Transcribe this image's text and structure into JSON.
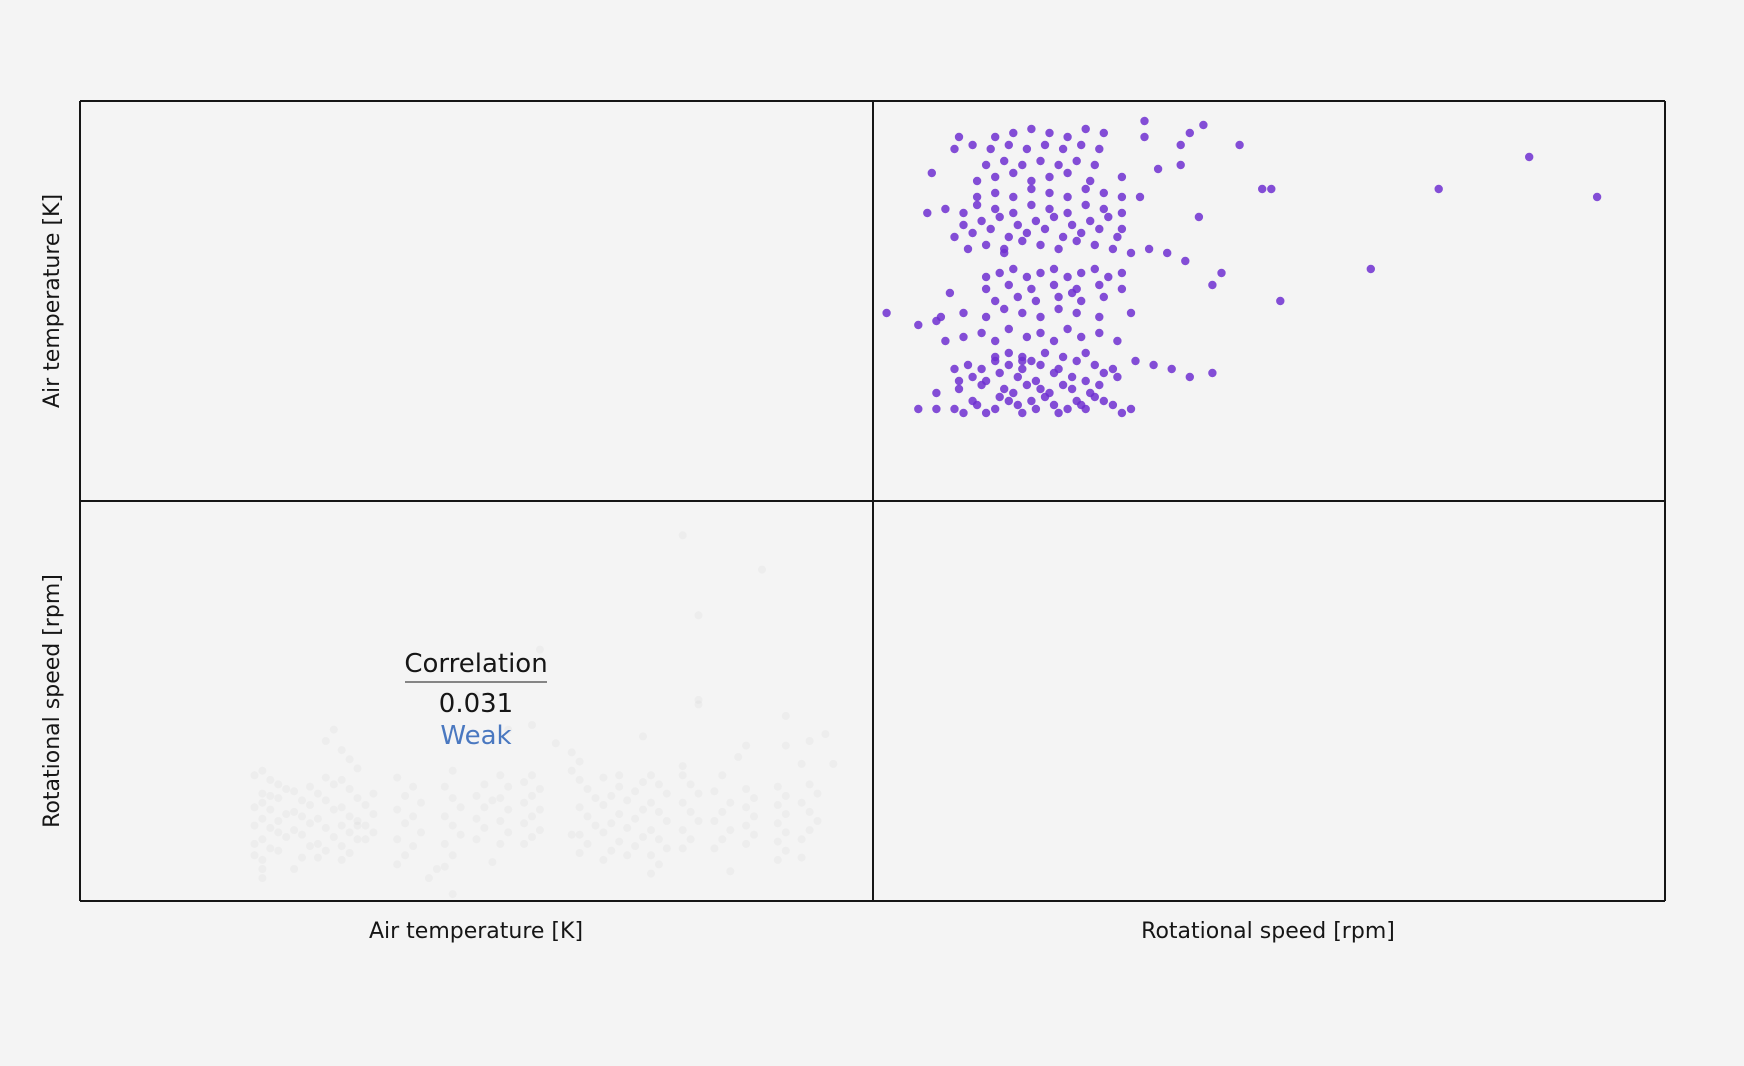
{
  "chart_data": {
    "type": "scatter",
    "variables": [
      "Air temperature [K]",
      "Rotational speed [rpm]"
    ],
    "row_labels": [
      "Air temperature [K]",
      "Rotational speed [rpm]"
    ],
    "col_labels": [
      "Air temperature [K]",
      "Rotational speed [rpm]"
    ],
    "correlation": {
      "title": "Correlation",
      "value": "0.031",
      "strength": "Weak"
    },
    "colors": {
      "points": "#6e2fd0",
      "strength_text": "#4a78c0",
      "grid": "#161616",
      "background": "#f4f4f4"
    },
    "scatter": {
      "x_variable": "Rotational speed [rpm]",
      "y_variable": "Air temperature [K]",
      "x_range": [
        1150,
        2900
      ],
      "y_range": [
        295,
        305
      ],
      "points": [
        [
          1250,
          297.3
        ],
        [
          1290,
          297.3
        ],
        [
          1330,
          297.3
        ],
        [
          1350,
          297.2
        ],
        [
          1370,
          297.5
        ],
        [
          1380,
          297.4
        ],
        [
          1400,
          297.2
        ],
        [
          1420,
          297.3
        ],
        [
          1430,
          297.6
        ],
        [
          1450,
          297.5
        ],
        [
          1470,
          297.4
        ],
        [
          1480,
          297.2
        ],
        [
          1500,
          297.5
        ],
        [
          1510,
          297.3
        ],
        [
          1530,
          297.6
        ],
        [
          1550,
          297.4
        ],
        [
          1560,
          297.2
        ],
        [
          1580,
          297.3
        ],
        [
          1600,
          297.5
        ],
        [
          1610,
          297.4
        ],
        [
          1620,
          297.3
        ],
        [
          1640,
          297.6
        ],
        [
          1660,
          297.5
        ],
        [
          1680,
          297.4
        ],
        [
          1700,
          297.2
        ],
        [
          1720,
          297.3
        ],
        [
          1290,
          297.7
        ],
        [
          1340,
          297.8
        ],
        [
          1390,
          297.9
        ],
        [
          1440,
          297.8
        ],
        [
          1460,
          297.7
        ],
        [
          1490,
          297.9
        ],
        [
          1520,
          297.8
        ],
        [
          1540,
          297.7
        ],
        [
          1570,
          297.9
        ],
        [
          1590,
          297.8
        ],
        [
          1630,
          297.7
        ],
        [
          1650,
          297.9
        ],
        [
          1340,
          298.0
        ],
        [
          1370,
          298.1
        ],
        [
          1400,
          298.0
        ],
        [
          1430,
          298.2
        ],
        [
          1470,
          298.1
        ],
        [
          1510,
          298.0
        ],
        [
          1550,
          298.2
        ],
        [
          1590,
          298.1
        ],
        [
          1620,
          298.0
        ],
        [
          1660,
          298.2
        ],
        [
          1690,
          298.1
        ],
        [
          1330,
          298.3
        ],
        [
          1360,
          298.4
        ],
        [
          1390,
          298.3
        ],
        [
          1420,
          298.5
        ],
        [
          1450,
          298.4
        ],
        [
          1480,
          298.3
        ],
        [
          1500,
          298.5
        ],
        [
          1520,
          298.4
        ],
        [
          1560,
          298.3
        ],
        [
          1600,
          298.5
        ],
        [
          1640,
          298.4
        ],
        [
          1680,
          298.3
        ],
        [
          1730,
          298.5
        ],
        [
          1770,
          298.4
        ],
        [
          1810,
          298.3
        ],
        [
          1850,
          298.1
        ],
        [
          1900,
          298.2
        ],
        [
          1420,
          298.6
        ],
        [
          1450,
          298.7
        ],
        [
          1480,
          298.6
        ],
        [
          1530,
          298.7
        ],
        [
          1570,
          298.6
        ],
        [
          1620,
          298.7
        ],
        [
          1310,
          299.0
        ],
        [
          1350,
          299.1
        ],
        [
          1390,
          299.2
        ],
        [
          1420,
          299.0
        ],
        [
          1450,
          299.3
        ],
        [
          1490,
          299.1
        ],
        [
          1520,
          299.2
        ],
        [
          1550,
          299.0
        ],
        [
          1580,
          299.3
        ],
        [
          1610,
          299.1
        ],
        [
          1650,
          299.2
        ],
        [
          1690,
          299.0
        ],
        [
          1300,
          299.6
        ],
        [
          1350,
          299.7
        ],
        [
          1400,
          299.6
        ],
        [
          1440,
          299.8
        ],
        [
          1480,
          299.7
        ],
        [
          1520,
          299.6
        ],
        [
          1560,
          299.8
        ],
        [
          1600,
          299.7
        ],
        [
          1650,
          299.6
        ],
        [
          1420,
          300.0
        ],
        [
          1470,
          300.1
        ],
        [
          1510,
          300.0
        ],
        [
          1560,
          300.1
        ],
        [
          1610,
          300.0
        ],
        [
          1660,
          300.1
        ],
        [
          1400,
          300.3
        ],
        [
          1450,
          300.4
        ],
        [
          1500,
          300.3
        ],
        [
          1550,
          300.4
        ],
        [
          1600,
          300.3
        ],
        [
          1650,
          300.4
        ],
        [
          1700,
          300.3
        ],
        [
          1400,
          300.6
        ],
        [
          1430,
          300.7
        ],
        [
          1460,
          300.8
        ],
        [
          1490,
          300.6
        ],
        [
          1520,
          300.7
        ],
        [
          1550,
          300.8
        ],
        [
          1580,
          300.6
        ],
        [
          1610,
          300.7
        ],
        [
          1640,
          300.8
        ],
        [
          1670,
          300.6
        ],
        [
          1700,
          300.7
        ],
        [
          1360,
          301.3
        ],
        [
          1400,
          301.4
        ],
        [
          1440,
          301.3
        ],
        [
          1480,
          301.5
        ],
        [
          1520,
          301.4
        ],
        [
          1560,
          301.3
        ],
        [
          1600,
          301.5
        ],
        [
          1640,
          301.4
        ],
        [
          1680,
          301.3
        ],
        [
          1720,
          301.2
        ],
        [
          1760,
          301.3
        ],
        [
          1800,
          301.2
        ],
        [
          1840,
          301.0
        ],
        [
          1330,
          301.6
        ],
        [
          1370,
          301.7
        ],
        [
          1410,
          301.8
        ],
        [
          1450,
          301.6
        ],
        [
          1490,
          301.7
        ],
        [
          1530,
          301.8
        ],
        [
          1570,
          301.6
        ],
        [
          1610,
          301.7
        ],
        [
          1650,
          301.8
        ],
        [
          1690,
          301.6
        ],
        [
          1350,
          301.9
        ],
        [
          1390,
          302.0
        ],
        [
          1430,
          302.1
        ],
        [
          1470,
          301.9
        ],
        [
          1510,
          302.0
        ],
        [
          1550,
          302.1
        ],
        [
          1590,
          301.9
        ],
        [
          1630,
          302.0
        ],
        [
          1670,
          302.1
        ],
        [
          1270,
          302.2
        ],
        [
          1310,
          302.3
        ],
        [
          1350,
          302.2
        ],
        [
          1380,
          302.4
        ],
        [
          1420,
          302.3
        ],
        [
          1460,
          302.2
        ],
        [
          1500,
          302.4
        ],
        [
          1540,
          302.3
        ],
        [
          1580,
          302.2
        ],
        [
          1620,
          302.4
        ],
        [
          1660,
          302.3
        ],
        [
          1700,
          302.2
        ],
        [
          1380,
          302.6
        ],
        [
          1420,
          302.7
        ],
        [
          1460,
          302.6
        ],
        [
          1500,
          302.8
        ],
        [
          1540,
          302.7
        ],
        [
          1580,
          302.6
        ],
        [
          1620,
          302.8
        ],
        [
          1660,
          302.7
        ],
        [
          1700,
          302.6
        ],
        [
          1380,
          303.0
        ],
        [
          1420,
          303.1
        ],
        [
          1460,
          303.2
        ],
        [
          1500,
          303.0
        ],
        [
          1540,
          303.1
        ],
        [
          1580,
          303.2
        ],
        [
          1630,
          303.0
        ],
        [
          1700,
          303.1
        ],
        [
          1780,
          303.3
        ],
        [
          1830,
          303.4
        ],
        [
          1400,
          303.4
        ],
        [
          1440,
          303.5
        ],
        [
          1480,
          303.4
        ],
        [
          1520,
          303.5
        ],
        [
          1560,
          303.4
        ],
        [
          1600,
          303.5
        ],
        [
          1640,
          303.4
        ],
        [
          1330,
          303.8
        ],
        [
          1370,
          303.9
        ],
        [
          1410,
          303.8
        ],
        [
          1450,
          303.9
        ],
        [
          1490,
          303.8
        ],
        [
          1530,
          303.9
        ],
        [
          1570,
          303.8
        ],
        [
          1610,
          303.9
        ],
        [
          1650,
          303.8
        ],
        [
          1420,
          304.1
        ],
        [
          1460,
          304.2
        ],
        [
          1500,
          304.3
        ],
        [
          1540,
          304.2
        ],
        [
          1580,
          304.1
        ],
        [
          1620,
          304.3
        ],
        [
          1660,
          304.2
        ],
        [
          1340,
          304.1
        ],
        [
          1750,
          304.1
        ],
        [
          1850,
          304.2
        ],
        [
          1880,
          304.4
        ],
        [
          1750,
          304.5
        ],
        [
          1960,
          303.9
        ],
        [
          2010,
          302.8
        ],
        [
          2030,
          302.8
        ],
        [
          2400,
          302.8
        ],
        [
          2600,
          303.6
        ],
        [
          1280,
          303.2
        ],
        [
          1440,
          301.2
        ],
        [
          1320,
          300.2
        ],
        [
          1250,
          299.4
        ],
        [
          1590,
          300.2
        ],
        [
          1480,
          298.5
        ],
        [
          1290,
          299.5
        ],
        [
          1700,
          301.8
        ],
        [
          2250,
          300.8
        ],
        [
          2750,
          302.6
        ],
        [
          1920,
          300.7
        ],
        [
          1180,
          299.7
        ],
        [
          2050,
          300.0
        ],
        [
          1720,
          299.7
        ],
        [
          1740,
          302.6
        ],
        [
          1830,
          303.9
        ],
        [
          1870,
          302.1
        ],
        [
          1900,
          300.4
        ]
      ]
    }
  }
}
